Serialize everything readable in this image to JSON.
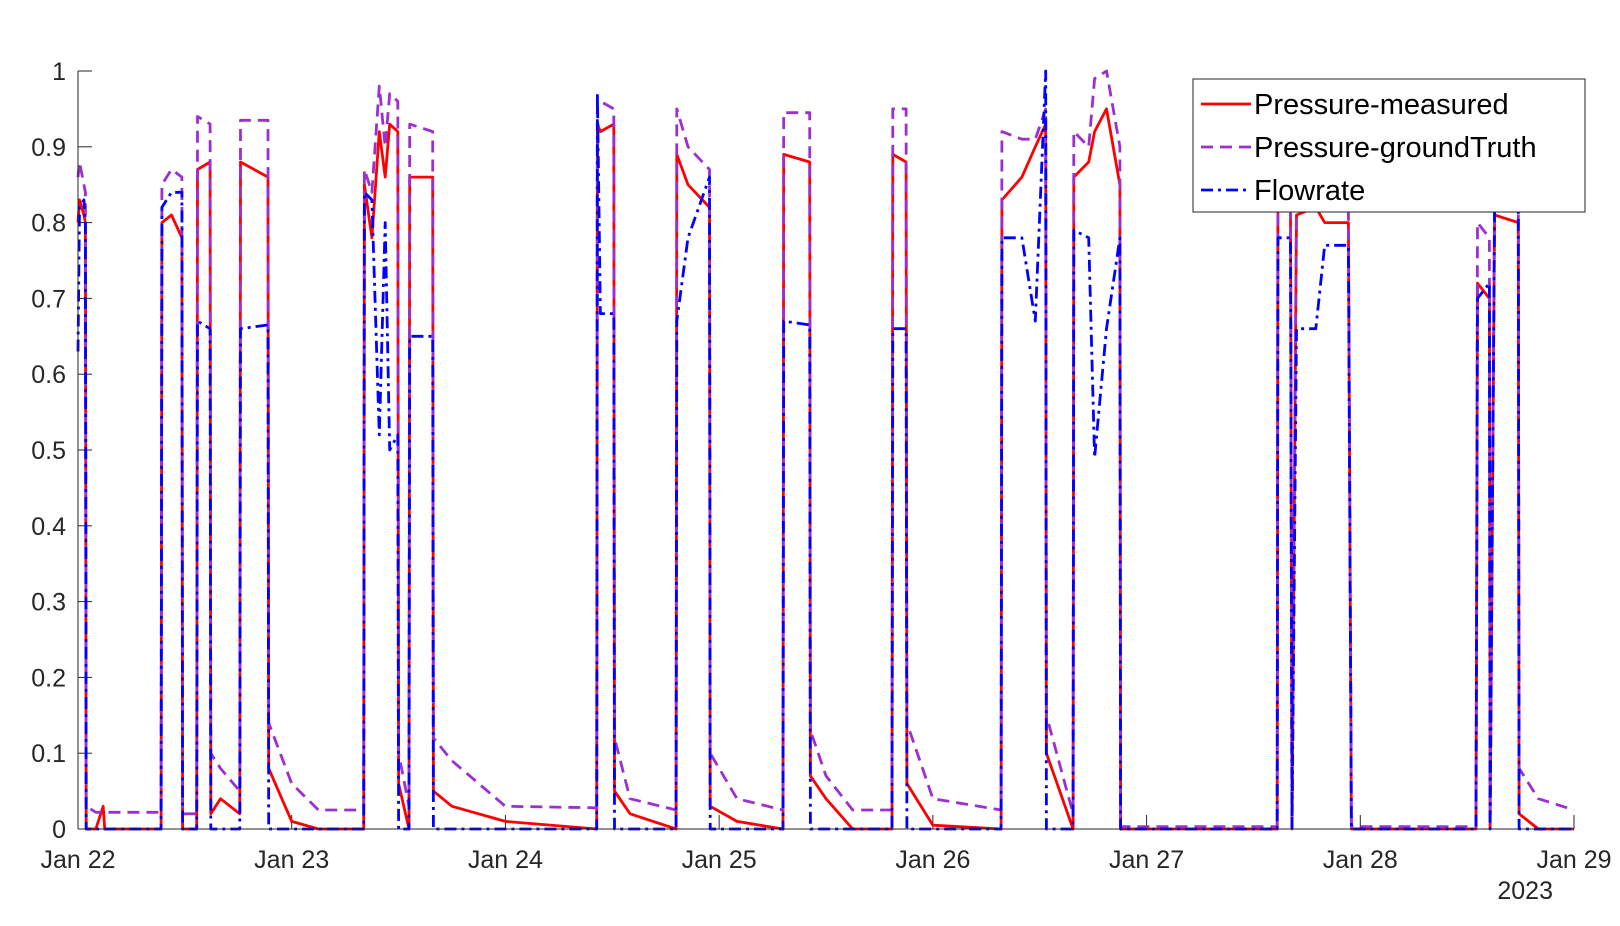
{
  "chart_data": {
    "type": "line",
    "x": [
      "2023-01-22T00:00",
      "2023-01-22T00:10",
      "2023-01-22T00:40",
      "2023-01-22T00:50",
      "2023-01-22T00:55",
      "2023-01-22T02:00",
      "2023-01-22T02:50",
      "2023-01-22T03:00",
      "2023-01-22T09:20",
      "2023-01-22T09:25",
      "2023-01-22T10:30",
      "2023-01-22T11:40",
      "2023-01-22T11:45",
      "2023-01-22T13:20",
      "2023-01-22T13:25",
      "2023-01-22T14:50",
      "2023-01-22T14:55",
      "2023-01-22T16:00",
      "2023-01-22T18:10",
      "2023-01-22T18:15",
      "2023-01-22T21:20",
      "2023-01-22T21:25",
      "2023-01-23T00:00",
      "2023-01-23T03:00",
      "2023-01-23T08:05",
      "2023-01-23T08:10",
      "2023-01-23T09:00",
      "2023-01-23T09:50",
      "2023-01-23T10:30",
      "2023-01-23T11:00",
      "2023-01-23T11:55",
      "2023-01-23T12:00",
      "2023-01-23T13:10",
      "2023-01-23T13:15",
      "2023-01-23T15:50",
      "2023-01-23T15:55",
      "2023-01-23T18:00",
      "2023-01-24T00:00",
      "2023-01-24T10:15",
      "2023-01-24T10:20",
      "2023-01-24T10:40",
      "2023-01-24T12:10",
      "2023-01-24T12:15",
      "2023-01-24T14:00",
      "2023-01-24T19:10",
      "2023-01-24T19:15",
      "2023-01-24T20:30",
      "2023-01-24T22:55",
      "2023-01-24T23:00",
      "2023-01-25T02:00",
      "2023-01-25T07:10",
      "2023-01-25T07:15",
      "2023-01-25T10:10",
      "2023-01-25T10:15",
      "2023-01-25T12:00",
      "2023-01-25T15:00",
      "2023-01-25T19:25",
      "2023-01-25T19:30",
      "2023-01-25T21:00",
      "2023-01-25T21:05",
      "2023-01-26T00:00",
      "2023-01-26T07:40",
      "2023-01-26T07:45",
      "2023-01-26T10:00",
      "2023-01-26T11:30",
      "2023-01-26T12:40",
      "2023-01-26T12:45",
      "2023-01-26T15:45",
      "2023-01-26T15:50",
      "2023-01-26T17:30",
      "2023-01-26T18:10",
      "2023-01-26T19:30",
      "2023-01-26T21:00",
      "2023-01-26T21:05",
      "2023-01-27T00:00",
      "2023-01-27T14:40",
      "2023-01-27T14:45",
      "2023-01-27T16:10",
      "2023-01-27T16:20",
      "2023-01-27T16:50",
      "2023-01-27T19:00",
      "2023-01-27T20:00",
      "2023-01-27T22:40",
      "2023-01-27T23:00",
      "2023-01-28T04:00",
      "2023-01-28T13:00",
      "2023-01-28T13:10",
      "2023-01-28T14:30",
      "2023-01-28T14:35",
      "2023-01-28T15:05",
      "2023-01-28T17:45",
      "2023-01-28T17:50",
      "2023-01-28T20:00",
      "2023-01-29T00:00"
    ],
    "series": [
      {
        "name": "Pressure-measured",
        "color": "#ff0000",
        "style": "solid",
        "values": [
          0.8,
          0.83,
          0.81,
          0.8,
          0,
          0,
          0.03,
          0,
          0,
          0.8,
          0.81,
          0.78,
          0,
          0,
          0.87,
          0.88,
          0.02,
          0.04,
          0.02,
          0.88,
          0.86,
          0.08,
          0.01,
          0,
          0,
          0.85,
          0.78,
          0.92,
          0.86,
          0.93,
          0.92,
          0.06,
          0,
          0.86,
          0.86,
          0.05,
          0.03,
          0.01,
          0,
          0.93,
          0.92,
          0.93,
          0.05,
          0.02,
          0,
          0.89,
          0.85,
          0.82,
          0.03,
          0.01,
          0,
          0.89,
          0.88,
          0.07,
          0.04,
          0,
          0,
          0.89,
          0.88,
          0.06,
          0.005,
          0,
          0.83,
          0.86,
          0.9,
          0.93,
          0.1,
          0,
          0.86,
          0.88,
          0.92,
          0.95,
          0.85,
          0,
          0,
          0,
          0.82,
          0.82,
          0,
          0.81,
          0.82,
          0.8,
          0.8,
          0,
          0,
          0,
          0.72,
          0.7,
          0,
          0.81,
          0.8,
          0.02,
          0,
          0
        ]
      },
      {
        "name": "Pressure-groundTruth",
        "color": "#9b30d0",
        "style": "dashed",
        "values": [
          0.86,
          0.88,
          0.85,
          0.84,
          0.03,
          0.022,
          0.022,
          0.022,
          0.022,
          0.85,
          0.87,
          0.86,
          0.02,
          0.02,
          0.94,
          0.93,
          0.1,
          0.08,
          0.05,
          0.935,
          0.935,
          0.14,
          0.06,
          0.025,
          0.025,
          0.87,
          0.84,
          0.98,
          0.9,
          0.97,
          0.96,
          0.1,
          0.03,
          0.93,
          0.92,
          0.12,
          0.09,
          0.03,
          0.028,
          0.96,
          0.96,
          0.95,
          0.12,
          0.04,
          0.025,
          0.95,
          0.9,
          0.87,
          0.1,
          0.04,
          0.025,
          0.945,
          0.945,
          0.13,
          0.07,
          0.025,
          0.025,
          0.95,
          0.95,
          0.14,
          0.04,
          0.025,
          0.92,
          0.91,
          0.91,
          0.95,
          0.15,
          0.02,
          0.92,
          0.9,
          0.99,
          1.0,
          0.9,
          0.003,
          0.003,
          0.003,
          0.85,
          0.85,
          0.003,
          0.84,
          0.84,
          0.83,
          0.82,
          0.003,
          0.003,
          0.003,
          0.8,
          0.78,
          0.01,
          0.83,
          0.82,
          0.08,
          0.04,
          0.025
        ]
      },
      {
        "name": "Flowrate",
        "color": "#0000ff",
        "style": "dashdot",
        "values": [
          0.63,
          0.82,
          0.83,
          0.8,
          0,
          0,
          0,
          0,
          0,
          0.82,
          0.84,
          0.84,
          0,
          0,
          0.67,
          0.66,
          0,
          0,
          0,
          0.66,
          0.665,
          0,
          0,
          0,
          0,
          0.84,
          0.83,
          0.52,
          0.8,
          0.5,
          0.52,
          0,
          0,
          0.65,
          0.65,
          0,
          0,
          0,
          0,
          0.97,
          0.68,
          0.68,
          0,
          0,
          0,
          0.67,
          0.78,
          0.86,
          0,
          0,
          0,
          0.67,
          0.665,
          0,
          0,
          0,
          0,
          0.66,
          0.66,
          0,
          0,
          0,
          0.78,
          0.78,
          0.67,
          1.0,
          0,
          0,
          0.79,
          0.78,
          0.49,
          0.66,
          0.78,
          0,
          0,
          0,
          0.78,
          0.78,
          0,
          0.66,
          0.66,
          0.77,
          0.77,
          0,
          0,
          0,
          0.7,
          0.72,
          0,
          0.82,
          0.82,
          0,
          0,
          0
        ]
      }
    ],
    "xlim": [
      "2023-01-22",
      "2023-01-29"
    ],
    "xticks": [
      {
        "value": "2023-01-22",
        "label": "Jan 22"
      },
      {
        "value": "2023-01-23",
        "label": "Jan 23"
      },
      {
        "value": "2023-01-24",
        "label": "Jan 24"
      },
      {
        "value": "2023-01-25",
        "label": "Jan 25"
      },
      {
        "value": "2023-01-26",
        "label": "Jan 26"
      },
      {
        "value": "2023-01-27",
        "label": "Jan 27"
      },
      {
        "value": "2023-01-28",
        "label": "Jan 28"
      },
      {
        "value": "2023-01-29",
        "label": "Jan 29"
      }
    ],
    "x_year_label": "2023",
    "ylim": [
      0,
      1
    ],
    "yticks": [
      0,
      0.1,
      0.2,
      0.3,
      0.4,
      0.5,
      0.6,
      0.7,
      0.8,
      0.9,
      1
    ],
    "grid": false,
    "legend": "northeast"
  }
}
